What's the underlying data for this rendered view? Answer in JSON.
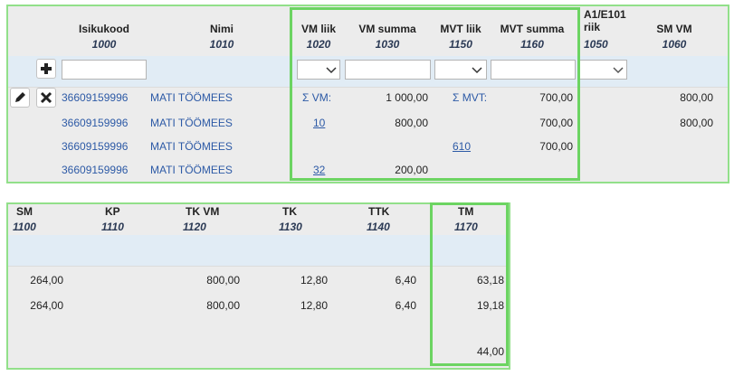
{
  "top_table": {
    "columns": [
      {
        "label": "Isikukood",
        "code": "1000"
      },
      {
        "label": "Nimi",
        "code": "1010"
      },
      {
        "label": "VM liik",
        "code": "1020"
      },
      {
        "label": "VM summa",
        "code": "1030"
      },
      {
        "label": "MVT liik",
        "code": "1150"
      },
      {
        "label": "MVT summa",
        "code": "1160"
      },
      {
        "label": "A1/E101 riik",
        "code": "1050"
      },
      {
        "label": "SM VM",
        "code": "1060"
      }
    ],
    "rows": [
      [
        "36609159996",
        "MATI TÖÖMEES",
        "Σ VM:",
        "1 000,00",
        "Σ MVT:",
        "700,00",
        null,
        "800,00"
      ],
      [
        "36609159996",
        "MATI TÖÖMEES",
        "10",
        "800,00",
        null,
        "700,00",
        null,
        "800,00"
      ],
      [
        "36609159996",
        "MATI TÖÖMEES",
        null,
        null,
        "610",
        "700,00",
        null,
        null
      ],
      [
        "36609159996",
        "MATI TÖÖMEES",
        "32",
        "200,00",
        null,
        null,
        null,
        null
      ]
    ]
  },
  "bottom_table": {
    "columns": [
      {
        "label": "SM",
        "code": "1100"
      },
      {
        "label": "KP",
        "code": "1110"
      },
      {
        "label": "TK VM",
        "code": "1120"
      },
      {
        "label": "TK",
        "code": "1130"
      },
      {
        "label": "TTK",
        "code": "1140"
      },
      {
        "label": "TM",
        "code": "1170"
      }
    ],
    "rows": [
      [
        "264,00",
        null,
        "800,00",
        "12,80",
        "6,40",
        "63,18"
      ],
      [
        "264,00",
        null,
        "800,00",
        "12,80",
        "6,40",
        "19,18"
      ],
      [
        null,
        null,
        null,
        null,
        null,
        "44,00"
      ]
    ]
  }
}
